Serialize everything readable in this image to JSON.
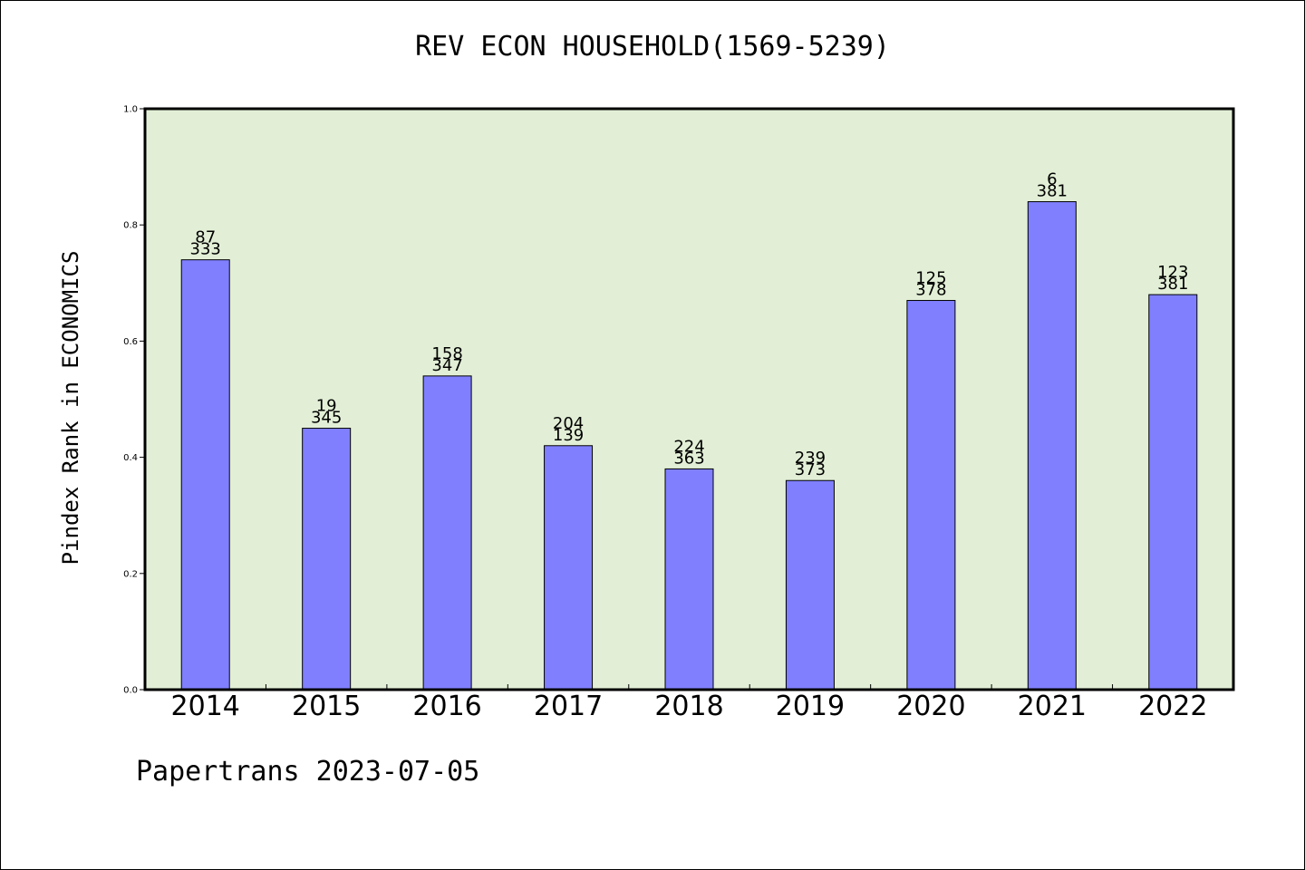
{
  "chart_data": {
    "type": "bar",
    "title": "REV ECON HOUSEHOLD(1569-5239)",
    "ylabel": "Pindex Rank in ECONOMICS",
    "xlabel": "",
    "categories": [
      "2014",
      "2015",
      "2016",
      "2017",
      "2018",
      "2019",
      "2020",
      "2021",
      "2022"
    ],
    "values": [
      0.74,
      0.45,
      0.54,
      0.42,
      0.38,
      0.36,
      0.67,
      0.84,
      0.68
    ],
    "label_top": [
      "87",
      "19",
      "158",
      "204",
      "224",
      "239",
      "125",
      "6",
      "123"
    ],
    "label_bottom": [
      "333",
      "345",
      "347",
      "139",
      "363",
      "373",
      "378",
      "381",
      "381"
    ],
    "ylim": [
      0.0,
      1.0
    ],
    "yticks": [
      "0.0",
      "0.2",
      "0.4",
      "0.6",
      "0.8",
      "1.0"
    ],
    "grid": false,
    "colors": {
      "bar_fill": "#8080ff",
      "plot_background": "#e2efd6",
      "axis": "#000000"
    }
  },
  "footer": {
    "credit": "Papertrans 2023-07-05"
  }
}
